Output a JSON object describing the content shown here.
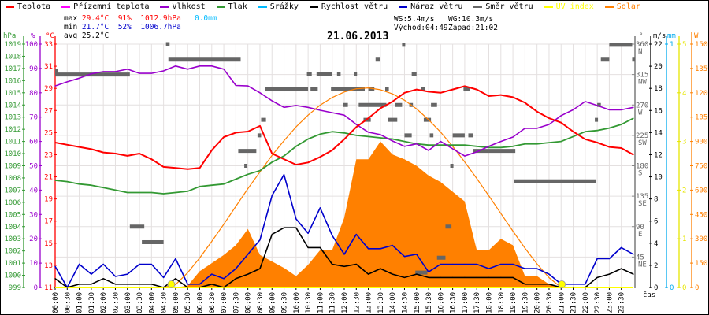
{
  "legend": [
    {
      "label": "Teplota",
      "color": "#ff0000"
    },
    {
      "label": "Přízemní teplota",
      "color": "#ff00ff"
    },
    {
      "label": "Vlhkost",
      "color": "#9900cc"
    },
    {
      "label": "Tlak",
      "color": "#339933"
    },
    {
      "label": "Srážky",
      "color": "#00bbff"
    },
    {
      "label": "Rychlost větru",
      "color": "#000000"
    },
    {
      "label": "Náraz větru",
      "color": "#0000cc"
    },
    {
      "label": "Směr větru",
      "color": "#666666"
    },
    {
      "label": "UV index",
      "color": "#ffff00"
    },
    {
      "label": "Solar",
      "color": "#ff8000"
    }
  ],
  "stats": {
    "max_label": "max",
    "max_temp": "29.4°C",
    "max_hum": "91%",
    "max_press": "1012.9hPa",
    "max_rain": "0.0mm",
    "min_label": "min",
    "min_temp": "21.7°C",
    "min_hum": "52%",
    "min_press": "1006.7hPa",
    "avg_label": "avg",
    "avg_temp": "25.2°C",
    "ws": "WS:5.4m/s",
    "wg": "WG:10.3m/s",
    "sunrise": "Východ:04:49",
    "sunset": "Západ:21:02"
  },
  "title": "21.06.2013",
  "chart_data": {
    "type": "line",
    "title": "21.06.2013",
    "xlabel": "čas",
    "x_hours": [
      0,
      0.5,
      1,
      1.5,
      2,
      2.5,
      3,
      3.5,
      4,
      4.5,
      5,
      5.5,
      6,
      6.5,
      7,
      7.5,
      8,
      8.5,
      9,
      9.5,
      10,
      10.5,
      11,
      11.5,
      12,
      12.5,
      13,
      13.5,
      14,
      14.5,
      15,
      15.5,
      16,
      16.5,
      17,
      17.5,
      18,
      18.5,
      19,
      19.5,
      20,
      20.5,
      21,
      21.5,
      22,
      22.5,
      23,
      23.5,
      24
    ],
    "x_tick_labels": [
      "00:00",
      "00:30",
      "01:00",
      "01:30",
      "02:00",
      "02:30",
      "03:00",
      "03:30",
      "04:00",
      "04:30",
      "05:00",
      "05:30",
      "06:00",
      "06:30",
      "07:00",
      "07:30",
      "08:00",
      "08:30",
      "09:00",
      "09:30",
      "10:00",
      "10:30",
      "11:00",
      "11:30",
      "12:00",
      "12:30",
      "13:00",
      "13:30",
      "14:00",
      "14:30",
      "15:00",
      "15:30",
      "16:00",
      "16:30",
      "17:00",
      "17:30",
      "18:00",
      "18:30",
      "19:00",
      "19:30",
      "20:00",
      "20:30",
      "21:00",
      "21:30",
      "22:00",
      "22:30",
      "23:00",
      "23:30"
    ],
    "axes": {
      "pressure": {
        "unit": "hPa",
        "range": [
          999,
          1019
        ],
        "color": "#339933"
      },
      "humidity": {
        "unit": "%",
        "range": [
          0,
          100
        ],
        "color": "#9900cc"
      },
      "temperature": {
        "unit": "°C",
        "range": [
          11,
          33
        ],
        "color": "#ff0000"
      },
      "direction": {
        "unit": "°",
        "range": [
          0,
          360
        ],
        "color": "#666666",
        "ticks": [
          {
            "v": 360,
            "c": "N"
          },
          {
            "v": 315,
            "c": "NW"
          },
          {
            "v": 270,
            "c": "W"
          },
          {
            "v": 225,
            "c": "SW"
          },
          {
            "v": 180,
            "c": "S"
          },
          {
            "v": 135,
            "c": "SE"
          },
          {
            "v": 90,
            "c": "E"
          },
          {
            "v": 45,
            "c": "NE"
          }
        ]
      },
      "wind": {
        "unit": "m/s",
        "range": [
          0,
          22
        ],
        "color": "#000000"
      },
      "rain": {
        "unit": "mm",
        "range": [
          0,
          1
        ],
        "color": "#00aaee"
      },
      "uv": {
        "unit": "",
        "range": [
          0,
          5
        ],
        "color": "#e6e600"
      },
      "solar": {
        "unit": "W",
        "range": [
          0,
          1500
        ],
        "color": "#ff8000"
      }
    },
    "series": [
      {
        "name": "Teplota",
        "axis": "temperature",
        "color": "#ff0000",
        "values": [
          24.1,
          23.9,
          23.7,
          23.5,
          23.2,
          23.1,
          22.9,
          23.1,
          22.6,
          21.9,
          21.8,
          21.7,
          21.8,
          23.4,
          24.6,
          25.0,
          25.1,
          25.6,
          23.1,
          22.6,
          22.1,
          22.3,
          22.8,
          23.4,
          24.4,
          25.5,
          26.3,
          27.2,
          27.8,
          28.6,
          28.9,
          28.7,
          28.6,
          28.9,
          29.2,
          28.9,
          28.3,
          28.4,
          28.2,
          27.7,
          26.9,
          26.3,
          25.9,
          25.1,
          24.4,
          24.1,
          23.7,
          23.6,
          23.0
        ]
      },
      {
        "name": "Tlak",
        "axis": "pressure",
        "color": "#339933",
        "values": [
          1007.8,
          1007.7,
          1007.5,
          1007.4,
          1007.2,
          1007.0,
          1006.8,
          1006.8,
          1006.8,
          1006.7,
          1006.8,
          1006.9,
          1007.3,
          1007.4,
          1007.5,
          1007.9,
          1008.3,
          1008.6,
          1009.3,
          1009.8,
          1010.6,
          1011.2,
          1011.6,
          1011.8,
          1011.7,
          1011.5,
          1011.4,
          1011.3,
          1011.2,
          1011.0,
          1010.8,
          1010.7,
          1010.7,
          1010.7,
          1010.7,
          1010.6,
          1010.5,
          1010.5,
          1010.6,
          1010.8,
          1010.8,
          1010.9,
          1011.0,
          1011.4,
          1011.8,
          1011.9,
          1012.1,
          1012.4,
          1012.9
        ]
      },
      {
        "name": "Vlhkost",
        "axis": "humidity",
        "color": "#9900cc",
        "values": [
          82.8,
          84.5,
          86,
          87.8,
          88.7,
          88.7,
          89.7,
          88,
          88,
          89,
          91,
          89.7,
          91,
          91,
          89.7,
          83,
          82.8,
          80,
          76.7,
          74,
          74.8,
          74,
          72.8,
          71.8,
          70.8,
          67,
          63.8,
          62.8,
          60.2,
          58,
          59,
          56.3,
          60,
          57,
          54,
          55.7,
          58,
          60,
          61.8,
          65.4,
          65.4,
          67,
          70.6,
          73,
          76.4,
          74.8,
          73,
          73,
          74
        ]
      },
      {
        "name": "Rychlost větru",
        "axis": "wind",
        "color": "#000000",
        "values": [
          0.8,
          0,
          0.3,
          0.3,
          0.8,
          0.3,
          0.3,
          0.3,
          0.3,
          0,
          0.8,
          0,
          0,
          0.3,
          0,
          0.8,
          1.2,
          1.7,
          4.8,
          5.4,
          5.4,
          3.6,
          3.6,
          2.1,
          1.9,
          2.1,
          1.2,
          1.7,
          1.2,
          0.9,
          1.2,
          0.9,
          0.9,
          0.9,
          0.9,
          0.9,
          0.9,
          0.9,
          0.9,
          0.3,
          0.3,
          0.3,
          0,
          0,
          0,
          0.9,
          1.2,
          1.7,
          1.2
        ]
      },
      {
        "name": "Náraz větru",
        "axis": "wind",
        "color": "#0000cc",
        "values": [
          1.9,
          0,
          2.1,
          1.2,
          2.1,
          1.0,
          1.2,
          2.1,
          2.1,
          0.9,
          2.6,
          0.3,
          0.3,
          1.2,
          0.8,
          1.7,
          3.0,
          4.3,
          8.3,
          10.2,
          6.2,
          4.9,
          7.2,
          4.7,
          3.0,
          4.8,
          3.5,
          3.5,
          3.8,
          2.8,
          3.0,
          1.4,
          2.1,
          2.1,
          2.1,
          2.1,
          1.7,
          2.1,
          2.1,
          1.7,
          1.7,
          1.2,
          0.3,
          0.3,
          0.3,
          2.6,
          2.6,
          3.6,
          3.0
        ]
      },
      {
        "name": "Solar",
        "axis": "solar",
        "color": "#ff8000",
        "fill": true,
        "values": [
          0,
          0,
          0,
          0,
          0,
          0,
          0,
          0,
          0,
          0,
          0,
          10,
          100,
          150,
          200,
          260,
          360,
          200,
          160,
          120,
          70,
          140,
          230,
          230,
          430,
          790,
          790,
          900,
          820,
          790,
          750,
          690,
          650,
          590,
          530,
          230,
          230,
          300,
          260,
          70,
          70,
          20,
          0,
          0,
          0,
          0,
          0,
          0,
          0
        ]
      },
      {
        "name": "Solar max",
        "axis": "solar",
        "color": "#ff8000",
        "values": [
          0,
          0,
          0,
          0,
          0,
          0,
          0,
          0,
          0,
          0,
          18,
          91,
          182,
          284,
          390,
          500,
          609,
          712,
          814,
          905,
          990,
          1062,
          1124,
          1171,
          1205,
          1225,
          1230,
          1219,
          1193,
          1154,
          1101,
          1034,
          958,
          870,
          774,
          672,
          565,
          456,
          347,
          242,
          145,
          60,
          0,
          0,
          0,
          0,
          0,
          0,
          0
        ]
      },
      {
        "name": "Srážky",
        "axis": "rain",
        "color": "#00bbff",
        "values": [
          0,
          0
        ]
      },
      {
        "name": "UV index",
        "axis": "uv",
        "color": "#ffff00",
        "values": [
          0,
          0
        ]
      }
    ],
    "wind_direction_segments": [
      [
        0.0,
        3.1,
        315
      ],
      [
        0.0,
        0.1,
        320
      ],
      [
        4.7,
        7.7,
        337
      ],
      [
        4.6,
        4.75,
        360
      ],
      [
        3.1,
        3.7,
        90
      ],
      [
        3.6,
        4.5,
        67
      ],
      [
        7.6,
        8.35,
        202
      ],
      [
        7.85,
        7.95,
        180
      ],
      [
        8.55,
        8.75,
        248
      ],
      [
        8.4,
        8.55,
        225
      ],
      [
        8.7,
        10.5,
        293
      ],
      [
        10.6,
        10.9,
        293
      ],
      [
        10.45,
        10.65,
        316
      ],
      [
        10.85,
        11.5,
        316
      ],
      [
        11.7,
        11.85,
        316
      ],
      [
        12.4,
        12.5,
        316
      ],
      [
        11.45,
        12.85,
        293
      ],
      [
        13.0,
        13.25,
        293
      ],
      [
        13.7,
        13.85,
        293
      ],
      [
        15.2,
        15.35,
        293
      ],
      [
        14.4,
        14.5,
        359
      ],
      [
        13.3,
        13.5,
        337
      ],
      [
        14.8,
        15.0,
        316
      ],
      [
        11.95,
        12.15,
        270
      ],
      [
        12.6,
        13.75,
        270
      ],
      [
        14.1,
        14.4,
        270
      ],
      [
        14.7,
        14.85,
        270
      ],
      [
        15.6,
        15.85,
        270
      ],
      [
        12.8,
        13.1,
        248
      ],
      [
        13.8,
        14.2,
        248
      ],
      [
        15.3,
        15.6,
        248
      ],
      [
        14.5,
        14.8,
        225
      ],
      [
        15.55,
        15.7,
        225
      ],
      [
        16.95,
        17.2,
        293
      ],
      [
        16.5,
        17.0,
        225
      ],
      [
        17.15,
        17.35,
        225
      ],
      [
        16.4,
        16.5,
        180
      ],
      [
        17.35,
        19.1,
        202
      ],
      [
        19.05,
        22.45,
        157
      ],
      [
        16.2,
        16.45,
        90
      ],
      [
        15.85,
        16.2,
        44
      ],
      [
        14.95,
        15.45,
        22
      ],
      [
        22.5,
        22.65,
        270
      ],
      [
        22.4,
        22.5,
        248
      ],
      [
        23.0,
        23.95,
        359
      ],
      [
        22.65,
        23.0,
        337
      ],
      [
        23.95,
        24.0,
        337
      ]
    ],
    "markers": [
      {
        "name": "sunrise",
        "hour": 4.82
      },
      {
        "name": "sunset",
        "hour": 21.03
      }
    ],
    "grid": true
  }
}
